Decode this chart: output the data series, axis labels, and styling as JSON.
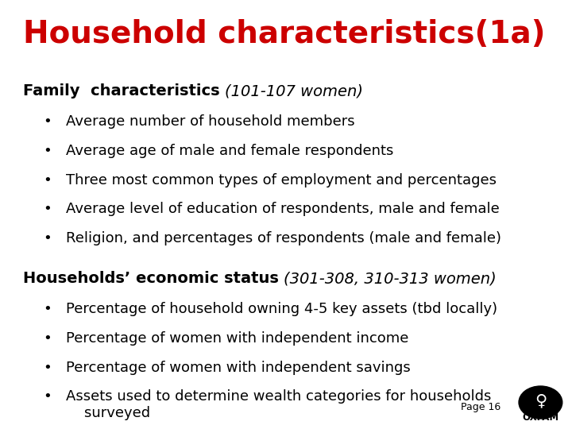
{
  "title": "Household characteristics(1a)",
  "title_color": "#cc0000",
  "title_fontsize": 28,
  "background_color": "#ffffff",
  "section1_bold": "Family  characteristics ",
  "section1_italic": "(101-107 women)",
  "section1_bullets": [
    "Average number of household members",
    "Average age of male and female respondents",
    "Three most common types of employment and percentages",
    "Average level of education of respondents, male and female",
    "Religion, and percentages of respondents (male and female)"
  ],
  "section2_bold": "Households’ economic status ",
  "section2_italic": "(301-308, 310-313 women)",
  "section2_bullets": [
    "Percentage of household owning 4-5 key assets (tbd locally)",
    "Percentage of women with independent income",
    "Percentage of women with independent savings",
    "Assets used to determine wealth categories for households\n    surveyed"
  ],
  "footer_text": "Page 16",
  "footer_fontsize": 9,
  "body_fontsize": 13,
  "header_fontsize": 14,
  "bullet_char": "•",
  "text_color": "#000000"
}
